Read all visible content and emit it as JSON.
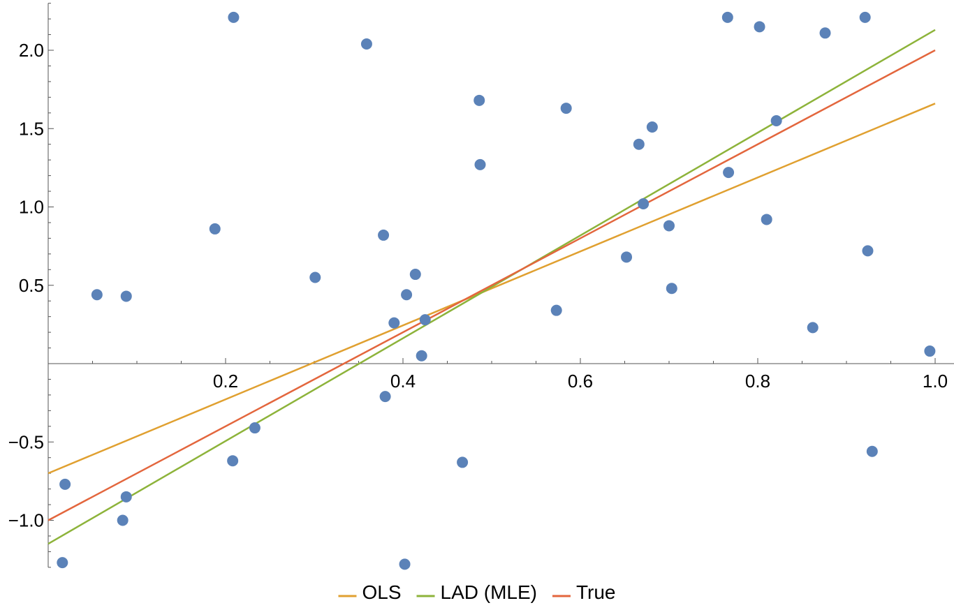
{
  "chart_data": {
    "type": "scatter",
    "title": "",
    "xlabel": "",
    "ylabel": "",
    "xlim": [
      0,
      1.0
    ],
    "ylim": [
      -1.3,
      2.3
    ],
    "grid": false,
    "legend_position": "bottom",
    "x_ticks": [
      {
        "value": 0.2,
        "label": "0.2"
      },
      {
        "value": 0.4,
        "label": "0.4"
      },
      {
        "value": 0.6,
        "label": "0.6"
      },
      {
        "value": 0.8,
        "label": "0.8"
      },
      {
        "value": 1.0,
        "label": "1.0"
      }
    ],
    "y_ticks": [
      {
        "value": -1.0,
        "label": "−1.0"
      },
      {
        "value": -0.5,
        "label": "−0.5"
      },
      {
        "value": 0.5,
        "label": "0.5"
      },
      {
        "value": 1.0,
        "label": "1.0"
      },
      {
        "value": 1.5,
        "label": "1.5"
      },
      {
        "value": 2.0,
        "label": "2.0"
      }
    ],
    "points": {
      "color": "#5b82b8",
      "values": [
        [
          0.016,
          -1.27
        ],
        [
          0.019,
          -0.77
        ],
        [
          0.055,
          0.44
        ],
        [
          0.088,
          0.43
        ],
        [
          0.084,
          -1.0
        ],
        [
          0.088,
          -0.85
        ],
        [
          0.188,
          0.86
        ],
        [
          0.209,
          2.21
        ],
        [
          0.208,
          -0.62
        ],
        [
          0.233,
          -0.41
        ],
        [
          0.301,
          0.55
        ],
        [
          0.359,
          2.04
        ],
        [
          0.378,
          0.82
        ],
        [
          0.38,
          -0.21
        ],
        [
          0.39,
          0.26
        ],
        [
          0.402,
          -1.28
        ],
        [
          0.404,
          0.44
        ],
        [
          0.414,
          0.57
        ],
        [
          0.421,
          0.05
        ],
        [
          0.425,
          0.28
        ],
        [
          0.467,
          -0.63
        ],
        [
          0.486,
          1.68
        ],
        [
          0.487,
          1.27
        ],
        [
          0.573,
          0.34
        ],
        [
          0.584,
          1.63
        ],
        [
          0.652,
          0.68
        ],
        [
          0.666,
          1.4
        ],
        [
          0.671,
          1.02
        ],
        [
          0.681,
          1.51
        ],
        [
          0.7,
          0.88
        ],
        [
          0.703,
          0.48
        ],
        [
          0.766,
          2.21
        ],
        [
          0.767,
          1.22
        ],
        [
          0.802,
          2.15
        ],
        [
          0.81,
          0.92
        ],
        [
          0.821,
          1.55
        ],
        [
          0.862,
          0.23
        ],
        [
          0.876,
          2.11
        ],
        [
          0.921,
          2.21
        ],
        [
          0.924,
          0.72
        ],
        [
          0.929,
          -0.56
        ],
        [
          0.994,
          0.08
        ]
      ]
    },
    "series": [
      {
        "name": "OLS",
        "color": "#e0a030",
        "intercept": -0.7,
        "slope": 2.36
      },
      {
        "name": "LAD (MLE)",
        "color": "#8db33a",
        "intercept": -1.15,
        "slope": 3.28
      },
      {
        "name": "True",
        "color": "#e3663d",
        "intercept": -1.0,
        "slope": 3.0
      }
    ]
  }
}
